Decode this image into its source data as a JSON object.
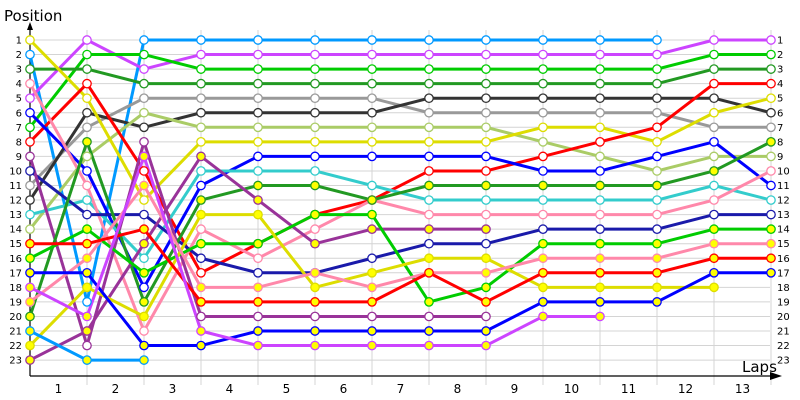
{
  "chart_data": {
    "type": "line",
    "title": "",
    "ylabel": "Position",
    "xlabel": "Laps",
    "x_categories": [
      "1",
      "2",
      "3",
      "4",
      "5",
      "6",
      "7",
      "8",
      "9",
      "10",
      "11",
      "12",
      "13"
    ],
    "y_ticks": [
      1,
      2,
      3,
      4,
      5,
      6,
      7,
      8,
      9,
      10,
      11,
      12,
      13,
      14,
      15,
      16,
      17,
      18,
      19,
      20,
      21,
      22,
      23
    ],
    "ylim": [
      1,
      23
    ],
    "y_inverted": true,
    "grid": true,
    "legend": "none",
    "columns_note": "positions recorded at start (col 0) then at end of each lap (cols 1..13)",
    "series": [
      {
        "name": "light-blue",
        "color": "#0099ff",
        "marker": "hollow",
        "positions": [
          2,
          19,
          1,
          1,
          1,
          1,
          1,
          1,
          1,
          1,
          1,
          1
        ]
      },
      {
        "name": "violet",
        "color": "#cc44ff",
        "marker": "hollow",
        "positions": [
          5,
          1,
          3,
          2,
          2,
          2,
          2,
          2,
          2,
          2,
          2,
          2,
          1,
          1
        ]
      },
      {
        "name": "green",
        "color": "#00cc00",
        "marker": "hollow",
        "positions": [
          7,
          2,
          2,
          3,
          3,
          3,
          3,
          3,
          3,
          3,
          3,
          3,
          2,
          2
        ]
      },
      {
        "name": "dark-green",
        "color": "#229922",
        "marker": "hollow",
        "positions": [
          3,
          3,
          4,
          4,
          4,
          4,
          4,
          4,
          4,
          4,
          4,
          4,
          3,
          3
        ]
      },
      {
        "name": "gray",
        "color": "#999999",
        "marker": "hollow",
        "positions": [
          11,
          7,
          5,
          5,
          5,
          5,
          5,
          6,
          6,
          6,
          6,
          6,
          7,
          7
        ]
      },
      {
        "name": "black",
        "color": "#333333",
        "marker": "hollow",
        "positions": [
          12,
          6,
          7,
          6,
          6,
          6,
          6,
          5,
          5,
          5,
          5,
          5,
          5,
          6
        ]
      },
      {
        "name": "olive",
        "color": "#aacc66",
        "marker": "hollow",
        "positions": [
          14,
          9,
          6,
          7,
          7,
          7,
          7,
          7,
          7,
          8,
          9,
          10,
          9,
          9
        ]
      },
      {
        "name": "yellow",
        "color": "#dddd00",
        "marker": "hollow",
        "positions": [
          1,
          5,
          12,
          8,
          8,
          8,
          8,
          8,
          8,
          7,
          7,
          8,
          6,
          5
        ]
      },
      {
        "name": "red",
        "color": "#ff0000",
        "marker": "hollow",
        "positions": [
          8,
          4,
          10,
          17,
          15,
          13,
          12,
          10,
          10,
          9,
          8,
          7,
          4,
          4
        ]
      },
      {
        "name": "blue",
        "color": "#0000ff",
        "marker": "hollow",
        "positions": [
          6,
          10,
          18,
          11,
          9,
          9,
          9,
          9,
          9,
          10,
          10,
          9,
          8,
          11
        ]
      },
      {
        "name": "cyan",
        "color": "#33cccc",
        "marker": "hollow",
        "positions": [
          13,
          12,
          16,
          10,
          10,
          10,
          11,
          12,
          12,
          12,
          12,
          12,
          11,
          12
        ]
      },
      {
        "name": "pink",
        "color": "#ff88aa",
        "marker": "hollow",
        "positions": [
          4,
          11,
          21,
          14,
          16,
          14,
          12,
          13,
          13,
          13,
          13,
          13,
          12,
          10
        ]
      },
      {
        "name": "navy",
        "color": "#1a1aaa",
        "marker": "hollow",
        "positions": [
          10,
          13,
          13,
          16,
          17,
          17,
          16,
          15,
          15,
          14,
          14,
          14,
          13,
          13
        ]
      },
      {
        "name": "purple",
        "color": "#993399",
        "marker": "hollow",
        "positions": [
          9,
          22,
          8,
          20,
          20,
          20,
          20,
          20,
          20
        ]
      },
      {
        "name": "dark-green-2",
        "color": "#229922",
        "marker": "filled",
        "positions": [
          20,
          8,
          19,
          12,
          11,
          11,
          12,
          11,
          11,
          11,
          11,
          11,
          10,
          8
        ]
      },
      {
        "name": "purple-2",
        "color": "#993399",
        "marker": "filled",
        "positions": [
          23,
          21,
          15,
          9,
          12,
          15,
          14,
          14,
          14
        ]
      },
      {
        "name": "green-2",
        "color": "#00cc00",
        "marker": "filled",
        "positions": [
          16,
          14,
          17,
          15,
          15,
          13,
          13,
          19,
          18,
          15,
          15,
          15,
          14,
          14
        ]
      },
      {
        "name": "yellow-2",
        "color": "#dddd00",
        "marker": "filled",
        "positions": [
          22,
          18,
          20,
          13,
          13,
          18,
          17,
          16,
          16,
          18,
          18,
          18,
          18
        ]
      },
      {
        "name": "pink-2",
        "color": "#ff88aa",
        "marker": "filled",
        "positions": [
          19,
          16,
          11,
          18,
          18,
          17,
          18,
          17,
          17,
          16,
          16,
          16,
          15,
          15
        ]
      },
      {
        "name": "red-2",
        "color": "#ff0000",
        "marker": "filled",
        "positions": [
          15,
          15,
          14,
          19,
          19,
          19,
          19,
          17,
          19,
          17,
          17,
          17,
          16,
          16
        ]
      },
      {
        "name": "blue-2",
        "color": "#0000ff",
        "marker": "filled",
        "positions": [
          17,
          17,
          22,
          22,
          21,
          21,
          21,
          21,
          21,
          19,
          19,
          19,
          17,
          17
        ]
      },
      {
        "name": "violet-2",
        "color": "#cc44ff",
        "marker": "filled",
        "positions": [
          18,
          20,
          9,
          21,
          22,
          22,
          22,
          22,
          22,
          20,
          20
        ]
      },
      {
        "name": "light-blue-2",
        "color": "#0099ff",
        "marker": "filled",
        "positions": [
          21,
          23,
          23
        ]
      }
    ]
  },
  "axes": {
    "y_title": "Position",
    "x_title": "Laps"
  }
}
